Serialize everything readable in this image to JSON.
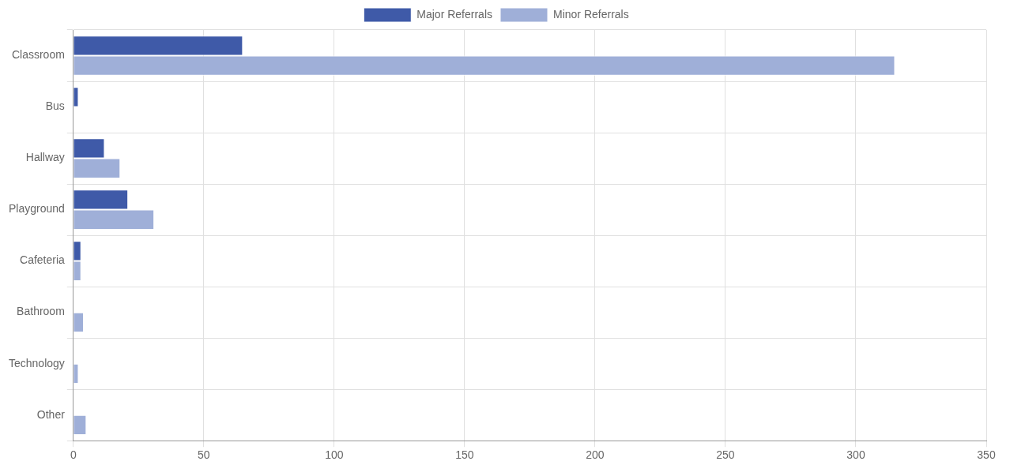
{
  "chart_data": {
    "type": "bar",
    "orientation": "horizontal",
    "categories": [
      "Classroom",
      "Bus",
      "Hallway",
      "Playground",
      "Cafeteria",
      "Bathroom",
      "Technology",
      "Other"
    ],
    "series": [
      {
        "name": "Major Referrals",
        "color": "#3f5aa8",
        "values": [
          65,
          2,
          12,
          21,
          3,
          0,
          0,
          0
        ]
      },
      {
        "name": "Minor Referrals",
        "color": "#9fafd8",
        "values": [
          315,
          0,
          18,
          31,
          3,
          4,
          2,
          5
        ]
      }
    ],
    "xlim": [
      0,
      350
    ],
    "xticks": [
      0,
      50,
      100,
      150,
      200,
      250,
      300,
      350
    ],
    "grid": true,
    "legend": "top"
  }
}
